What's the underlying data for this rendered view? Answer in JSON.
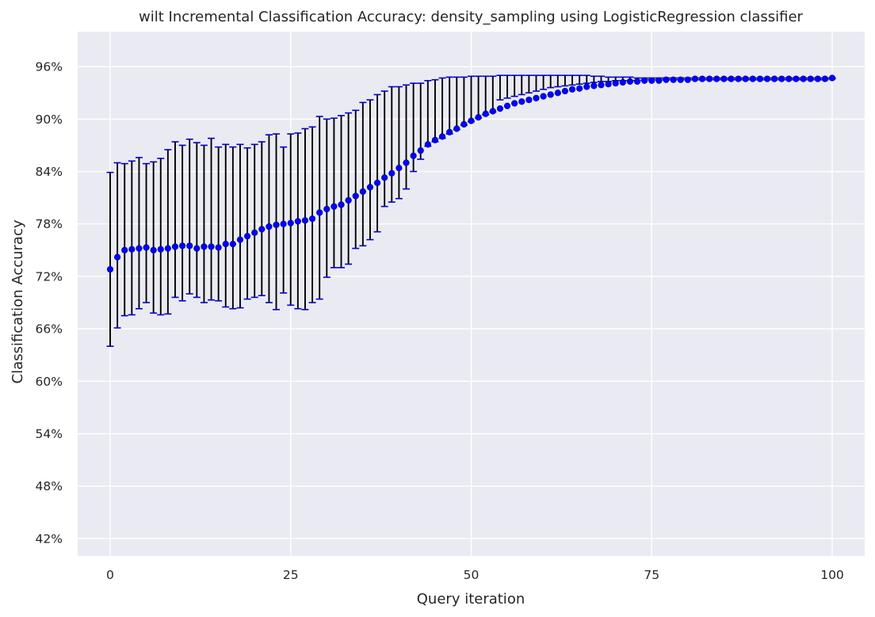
{
  "chart_data": {
    "type": "scatter",
    "title": "wilt Incremental Classification Accuracy: density_sampling using LogisticRegression classifier",
    "xlabel": "Query iteration",
    "ylabel": "Classification Accuracy",
    "xlim": [
      -4.5,
      104.5
    ],
    "ylim": [
      0.4,
      1.0
    ],
    "xticks": [
      0,
      25,
      50,
      75,
      100
    ],
    "yticks": [
      0.42,
      0.48,
      0.54,
      0.6,
      0.66,
      0.72,
      0.78,
      0.84,
      0.9,
      0.96
    ],
    "ytick_labels": [
      "42%",
      "48%",
      "54%",
      "60%",
      "66%",
      "72%",
      "78%",
      "84%",
      "90%",
      "96%"
    ],
    "grid": true,
    "colors": {
      "background": "#eaeaf2",
      "grid": "#ffffff",
      "marker": "#0000ff",
      "errorbar": "#000000",
      "cap": "#0000cc"
    },
    "series": [
      {
        "x": [
          0,
          1,
          2,
          3,
          4,
          5,
          6,
          7,
          8,
          9,
          10,
          11,
          12,
          13,
          14,
          15,
          16,
          17,
          18,
          19,
          20,
          21,
          22,
          23,
          24,
          25,
          26,
          27,
          28,
          29,
          30,
          31,
          32,
          33,
          34,
          35,
          36,
          37,
          38,
          39,
          40,
          41,
          42,
          43,
          44,
          45,
          46,
          47,
          48,
          49,
          50,
          51,
          52,
          53,
          54,
          55,
          56,
          57,
          58,
          59,
          60,
          61,
          62,
          63,
          64,
          65,
          66,
          67,
          68,
          69,
          70,
          71,
          72,
          73,
          74,
          75,
          76,
          77,
          78,
          79,
          80,
          81,
          82,
          83,
          84,
          85,
          86,
          87,
          88,
          89,
          90,
          91,
          92,
          93,
          94,
          95,
          96,
          97,
          98,
          99,
          100
        ],
        "mean": [
          0.728,
          0.742,
          0.75,
          0.751,
          0.752,
          0.753,
          0.75,
          0.751,
          0.752,
          0.754,
          0.755,
          0.755,
          0.752,
          0.754,
          0.754,
          0.753,
          0.757,
          0.757,
          0.762,
          0.766,
          0.77,
          0.774,
          0.777,
          0.779,
          0.78,
          0.781,
          0.783,
          0.784,
          0.786,
          0.793,
          0.797,
          0.8,
          0.802,
          0.807,
          0.812,
          0.817,
          0.822,
          0.827,
          0.833,
          0.838,
          0.844,
          0.85,
          0.858,
          0.864,
          0.871,
          0.876,
          0.88,
          0.885,
          0.889,
          0.894,
          0.898,
          0.902,
          0.906,
          0.909,
          0.912,
          0.915,
          0.918,
          0.92,
          0.922,
          0.924,
          0.926,
          0.928,
          0.93,
          0.932,
          0.934,
          0.935,
          0.937,
          0.938,
          0.939,
          0.94,
          0.941,
          0.942,
          0.943,
          0.943,
          0.944,
          0.944,
          0.944,
          0.945,
          0.945,
          0.945,
          0.945,
          0.946,
          0.946,
          0.946,
          0.946,
          0.946,
          0.946,
          0.946,
          0.946,
          0.946,
          0.946,
          0.946,
          0.946,
          0.946,
          0.946,
          0.946,
          0.946,
          0.946,
          0.946,
          0.946,
          0.947
        ],
        "lower": [
          0.64,
          0.661,
          0.675,
          0.676,
          0.683,
          0.69,
          0.678,
          0.676,
          0.677,
          0.696,
          0.692,
          0.7,
          0.696,
          0.69,
          0.693,
          0.692,
          0.685,
          0.683,
          0.684,
          0.694,
          0.696,
          0.698,
          0.69,
          0.682,
          0.701,
          0.687,
          0.683,
          0.682,
          0.69,
          0.694,
          0.719,
          0.73,
          0.73,
          0.734,
          0.752,
          0.755,
          0.762,
          0.771,
          0.8,
          0.805,
          0.809,
          0.82,
          0.84,
          0.854,
          0.869,
          0.874,
          0.878,
          0.883,
          0.888,
          0.893,
          0.897,
          0.901,
          0.905,
          0.908,
          0.922,
          0.924,
          0.926,
          0.928,
          0.93,
          0.932,
          0.934,
          0.936,
          0.937,
          0.938,
          0.939,
          0.94,
          0.941,
          0.942,
          0.943,
          0.943,
          0.944,
          0.944,
          0.944,
          0.944,
          0.945,
          0.945,
          0.945,
          0.945,
          0.945,
          0.945,
          0.945,
          0.945,
          0.945,
          0.945,
          0.945,
          0.945,
          0.945,
          0.945,
          0.945,
          0.945,
          0.945,
          0.945,
          0.945,
          0.945,
          0.945,
          0.945,
          0.945,
          0.945,
          0.945,
          0.945,
          0.946
        ],
        "upper": [
          0.839,
          0.85,
          0.849,
          0.852,
          0.856,
          0.849,
          0.851,
          0.855,
          0.865,
          0.874,
          0.87,
          0.877,
          0.873,
          0.87,
          0.878,
          0.868,
          0.871,
          0.868,
          0.871,
          0.867,
          0.871,
          0.874,
          0.882,
          0.883,
          0.868,
          0.883,
          0.884,
          0.889,
          0.891,
          0.903,
          0.9,
          0.901,
          0.904,
          0.907,
          0.91,
          0.919,
          0.922,
          0.928,
          0.932,
          0.937,
          0.937,
          0.939,
          0.941,
          0.941,
          0.944,
          0.945,
          0.947,
          0.948,
          0.948,
          0.948,
          0.949,
          0.949,
          0.949,
          0.949,
          0.95,
          0.95,
          0.95,
          0.95,
          0.95,
          0.95,
          0.95,
          0.95,
          0.95,
          0.95,
          0.95,
          0.95,
          0.95,
          0.949,
          0.949,
          0.948,
          0.948,
          0.948,
          0.948,
          0.947,
          0.947,
          0.947,
          0.947,
          0.947,
          0.947,
          0.947,
          0.947,
          0.947,
          0.947,
          0.947,
          0.947,
          0.947,
          0.947,
          0.947,
          0.947,
          0.947,
          0.947,
          0.947,
          0.947,
          0.947,
          0.947,
          0.947,
          0.947,
          0.947,
          0.947,
          0.947,
          0.947
        ]
      }
    ]
  }
}
